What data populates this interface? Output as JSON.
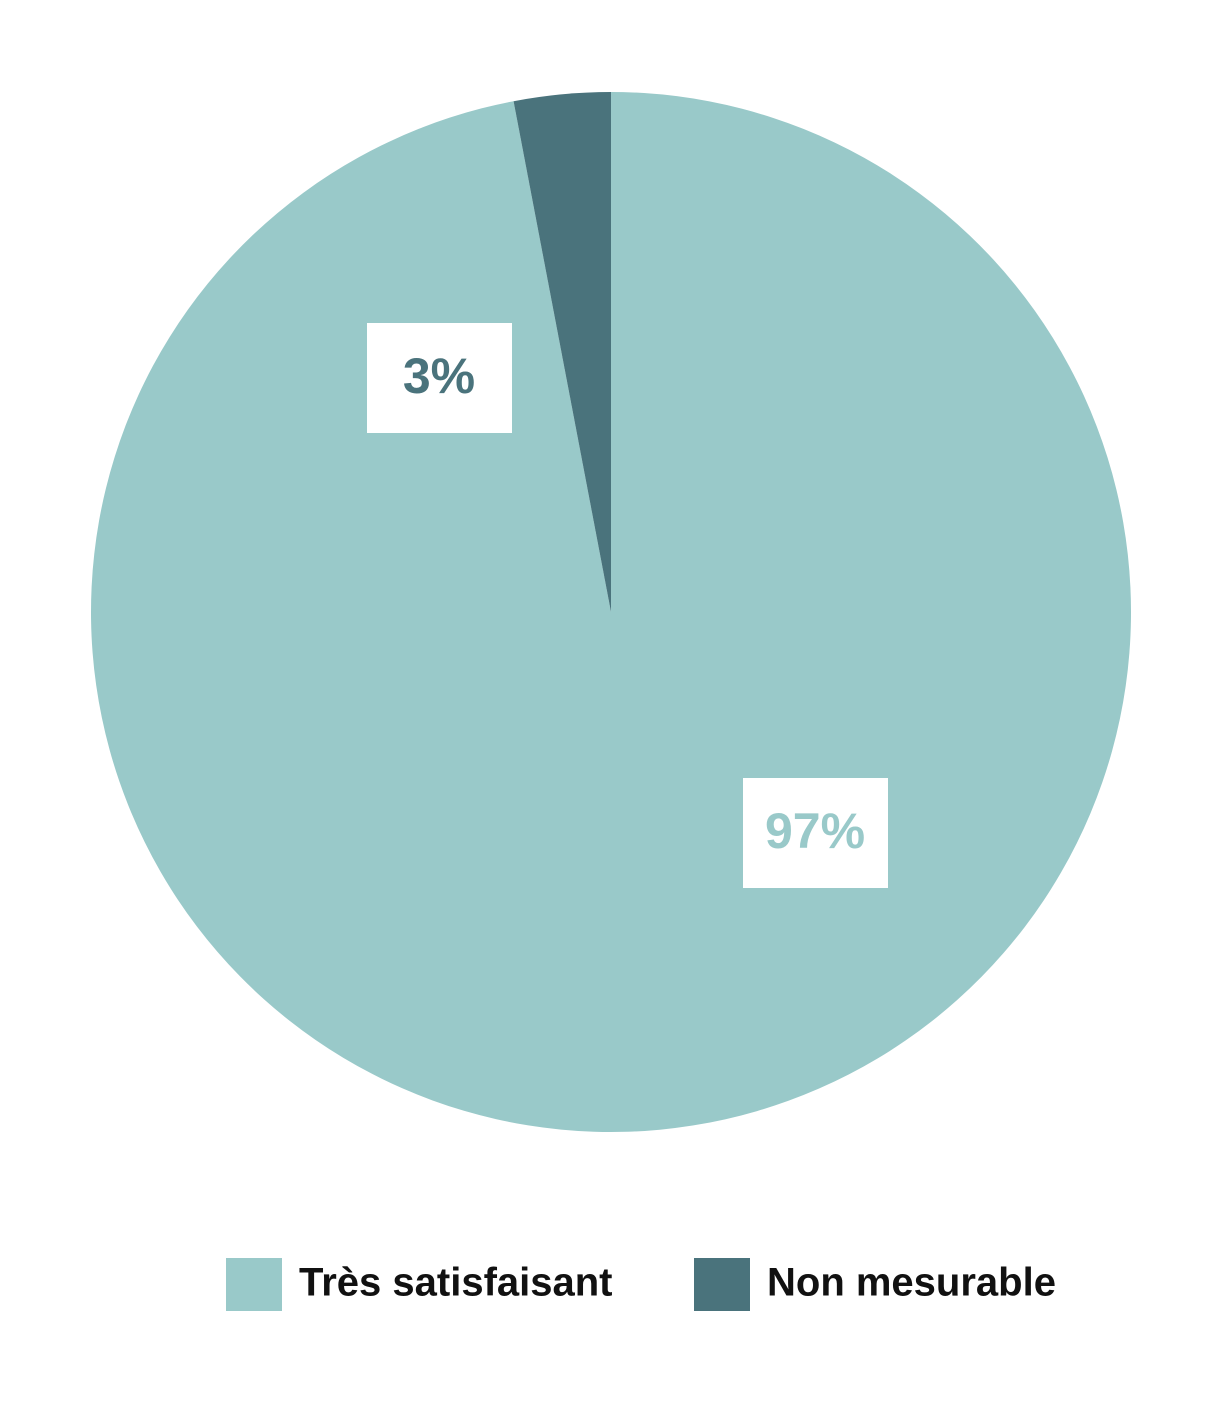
{
  "chart_data": {
    "type": "pie",
    "categories": [
      "Très satisfaisant",
      "Non mesurable"
    ],
    "values": [
      97,
      3
    ],
    "value_labels": [
      "97%",
      "3%"
    ],
    "colors": [
      "#99c9c9",
      "#4a737c"
    ]
  }
}
